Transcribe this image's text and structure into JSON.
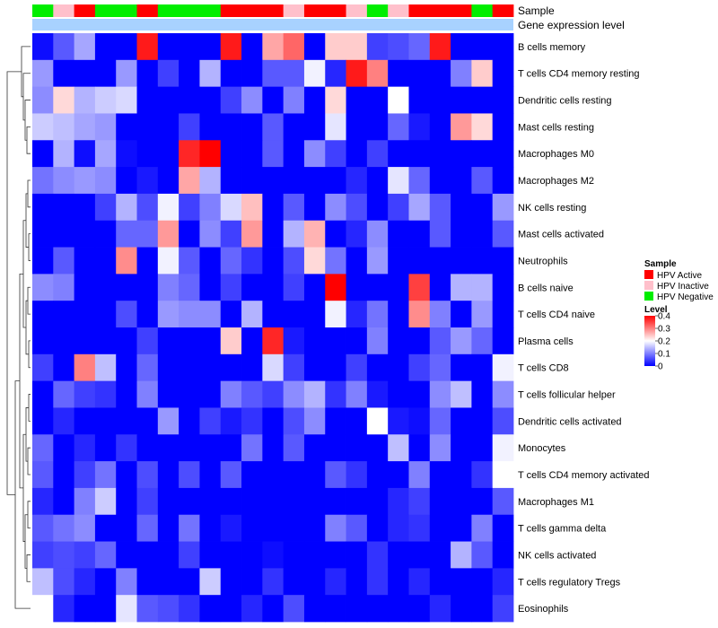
{
  "chart_data": {
    "type": "heatmap",
    "annotation_rows": [
      "Sample",
      "Gene expression level"
    ],
    "sample_groups": [
      "HPV Negative",
      "HPV Inactive",
      "HPV Active",
      "HPV Negative",
      "HPV Negative",
      "HPV Active",
      "HPV Negative",
      "HPV Negative",
      "HPV Negative",
      "HPV Active",
      "HPV Active",
      "HPV Active",
      "HPV Inactive",
      "HPV Active",
      "HPV Active",
      "HPV Inactive",
      "HPV Negative",
      "HPV Inactive",
      "HPV Active",
      "HPV Active",
      "HPV Active",
      "HPV Negative",
      "HPV Active"
    ],
    "rows": [
      "B cells memory",
      "T cells CD4 memory resting",
      "Dendritic cells resting",
      "Mast cells resting",
      "Macrophages M0",
      "Macrophages M2",
      "NK cells resting",
      "Mast cells activated",
      "Neutrophils",
      "B cells naive",
      "T cells CD4 naive",
      "Plasma cells",
      "T cells CD8",
      "T cells follicular helper",
      "Dendritic cells activated",
      "Monocytes",
      "T cells CD4 memory activated",
      "Macrophages M1",
      "T cells gamma delta",
      "NK cells activated",
      "T cells regulatory  Tregs",
      "Eosinophils"
    ],
    "values": [
      [
        0.01,
        0.07,
        0.13,
        0.0,
        0.0,
        0.38,
        0.0,
        0.0,
        0.0,
        0.38,
        0.0,
        0.27,
        0.32,
        0.0,
        0.24,
        0.24,
        0.05,
        0.06,
        0.08,
        0.38,
        0.0,
        0.0,
        0.0
      ],
      [
        0.12,
        0.0,
        0.0,
        0.0,
        0.12,
        0.0,
        0.05,
        0.0,
        0.14,
        0.0,
        0.0,
        0.07,
        0.07,
        0.19,
        0.03,
        0.38,
        0.3,
        0.0,
        0.0,
        0.0,
        0.1,
        0.24,
        0.0
      ],
      [
        0.11,
        0.23,
        0.14,
        0.16,
        0.17,
        0.0,
        0.0,
        0.0,
        0.0,
        0.05,
        0.11,
        0.0,
        0.1,
        0.0,
        0.23,
        0.0,
        0.0,
        0.2,
        0.0,
        0.0,
        0.0,
        0.0,
        0.0
      ],
      [
        0.16,
        0.15,
        0.13,
        0.12,
        0.0,
        0.0,
        0.0,
        0.05,
        0.0,
        0.0,
        0.0,
        0.07,
        0.0,
        0.0,
        0.18,
        0.0,
        0.0,
        0.08,
        0.02,
        0.0,
        0.28,
        0.23,
        0.0
      ],
      [
        0.0,
        0.14,
        0.01,
        0.13,
        0.01,
        0.0,
        0.0,
        0.37,
        0.4,
        0.0,
        0.0,
        0.07,
        0.0,
        0.11,
        0.05,
        0.0,
        0.05,
        0.0,
        0.0,
        0.0,
        0.0,
        0.0,
        0.0
      ],
      [
        0.09,
        0.11,
        0.12,
        0.11,
        0.0,
        0.02,
        0.0,
        0.27,
        0.14,
        0.0,
        0.0,
        0.0,
        0.0,
        0.0,
        0.0,
        0.03,
        0.0,
        0.18,
        0.08,
        0.0,
        0.0,
        0.07,
        0.0
      ],
      [
        0.0,
        0.0,
        0.0,
        0.05,
        0.14,
        0.06,
        0.19,
        0.05,
        0.1,
        0.17,
        0.25,
        0.0,
        0.07,
        0.0,
        0.11,
        0.06,
        0.0,
        0.05,
        0.13,
        0.07,
        0.0,
        0.0,
        0.12
      ],
      [
        0.0,
        0.0,
        0.0,
        0.0,
        0.08,
        0.08,
        0.28,
        0.0,
        0.11,
        0.05,
        0.28,
        0.0,
        0.14,
        0.26,
        0.0,
        0.03,
        0.11,
        0.0,
        0.0,
        0.07,
        0.0,
        0.0,
        0.07
      ],
      [
        0.0,
        0.07,
        0.0,
        0.0,
        0.29,
        0.0,
        0.19,
        0.07,
        0.0,
        0.08,
        0.04,
        0.0,
        0.06,
        0.23,
        0.09,
        0.0,
        0.12,
        0.0,
        0.0,
        0.0,
        0.0,
        0.0,
        0.0
      ],
      [
        0.11,
        0.1,
        0.0,
        0.0,
        0.0,
        0.0,
        0.1,
        0.08,
        0.0,
        0.05,
        0.0,
        0.0,
        0.05,
        0.0,
        0.4,
        0.0,
        0.0,
        0.0,
        0.35,
        0.0,
        0.14,
        0.14,
        0.0
      ],
      [
        0.0,
        0.0,
        0.0,
        0.0,
        0.06,
        0.0,
        0.12,
        0.11,
        0.11,
        0.0,
        0.14,
        0.0,
        0.0,
        0.0,
        0.19,
        0.03,
        0.09,
        0.0,
        0.29,
        0.1,
        0.0,
        0.12,
        0.0
      ],
      [
        0.0,
        0.0,
        0.0,
        0.0,
        0.0,
        0.05,
        0.0,
        0.0,
        0.0,
        0.24,
        0.0,
        0.37,
        0.02,
        0.0,
        0.0,
        0.0,
        0.1,
        0.0,
        0.0,
        0.07,
        0.12,
        0.08,
        0.0
      ],
      [
        0.05,
        0.0,
        0.3,
        0.15,
        0.0,
        0.08,
        0.0,
        0.0,
        0.0,
        0.0,
        0.0,
        0.17,
        0.05,
        0.0,
        0.0,
        0.05,
        0.0,
        0.0,
        0.05,
        0.08,
        0.0,
        0.0,
        0.19
      ],
      [
        0.0,
        0.08,
        0.05,
        0.04,
        0.0,
        0.1,
        0.0,
        0.0,
        0.0,
        0.1,
        0.07,
        0.05,
        0.11,
        0.14,
        0.04,
        0.1,
        0.02,
        0.0,
        0.0,
        0.11,
        0.15,
        0.0,
        0.11
      ],
      [
        0.0,
        0.03,
        0.0,
        0.0,
        0.0,
        0.0,
        0.12,
        0.0,
        0.05,
        0.02,
        0.04,
        0.0,
        0.06,
        0.11,
        0.0,
        0.0,
        0.2,
        0.02,
        0.01,
        0.08,
        0.0,
        0.0,
        0.06
      ],
      [
        0.08,
        0.0,
        0.03,
        0.0,
        0.04,
        0.0,
        0.0,
        0.0,
        0.0,
        0.0,
        0.09,
        0.0,
        0.07,
        0.0,
        0.0,
        0.0,
        0.0,
        0.15,
        0.0,
        0.11,
        0.0,
        0.0,
        0.19
      ],
      [
        0.07,
        0.0,
        0.05,
        0.09,
        0.0,
        0.06,
        0.0,
        0.06,
        0.0,
        0.07,
        0.0,
        0.0,
        0.0,
        0.0,
        0.07,
        0.04,
        0.0,
        0.0,
        0.1,
        0.0,
        0.0,
        0.04,
        0.2
      ],
      [
        0.03,
        0.0,
        0.1,
        0.16,
        0.0,
        0.05,
        0.0,
        0.0,
        0.0,
        0.0,
        0.0,
        0.0,
        0.0,
        0.0,
        0.0,
        0.0,
        0.0,
        0.03,
        0.05,
        0.0,
        0.0,
        0.0,
        0.07
      ],
      [
        0.07,
        0.09,
        0.11,
        0.0,
        0.0,
        0.08,
        0.0,
        0.09,
        0.0,
        0.02,
        0.0,
        0.0,
        0.0,
        0.0,
        0.1,
        0.07,
        0.0,
        0.03,
        0.04,
        0.0,
        0.0,
        0.1,
        0.0
      ],
      [
        0.05,
        0.06,
        0.05,
        0.08,
        0.0,
        0.0,
        0.0,
        0.05,
        0.0,
        0.0,
        0.0,
        0.01,
        0.0,
        0.0,
        0.0,
        0.0,
        0.04,
        0.0,
        0.0,
        0.0,
        0.14,
        0.07,
        0.0
      ],
      [
        0.15,
        0.06,
        0.03,
        0.0,
        0.1,
        0.0,
        0.0,
        0.0,
        0.16,
        0.0,
        0.0,
        0.04,
        0.0,
        0.0,
        0.03,
        0.0,
        0.04,
        0.0,
        0.03,
        0.0,
        0.0,
        0.0,
        0.03
      ],
      [
        0.2,
        0.03,
        0.0,
        0.0,
        0.18,
        0.07,
        0.06,
        0.04,
        0.0,
        0.0,
        0.03,
        0.0,
        0.06,
        0.0,
        0.0,
        0.0,
        0.0,
        0.0,
        0.0,
        0.03,
        0.0,
        0.0,
        0.05
      ]
    ],
    "legend_sample": {
      "title": "Sample",
      "entries": [
        {
          "label": "HPV Active",
          "color": "#ff0000"
        },
        {
          "label": "HPV Inactive",
          "color": "#ffc0cb"
        },
        {
          "label": "HPV Negative",
          "color": "#00ee00"
        }
      ]
    },
    "legend_level": {
      "title": "Level",
      "min": 0,
      "max": 0.4,
      "ticks": [
        "0.4",
        "0.3",
        "0.2",
        "0.1",
        "0"
      ],
      "tick_values": [
        0.4,
        0.3,
        0.2,
        0.1,
        0
      ]
    },
    "colors": {
      "low": "#0000ff",
      "mid": "#ffffff",
      "high": "#ff0000",
      "midpoint": 0.2,
      "gene_expression_bar": "#a8d2ff"
    }
  }
}
